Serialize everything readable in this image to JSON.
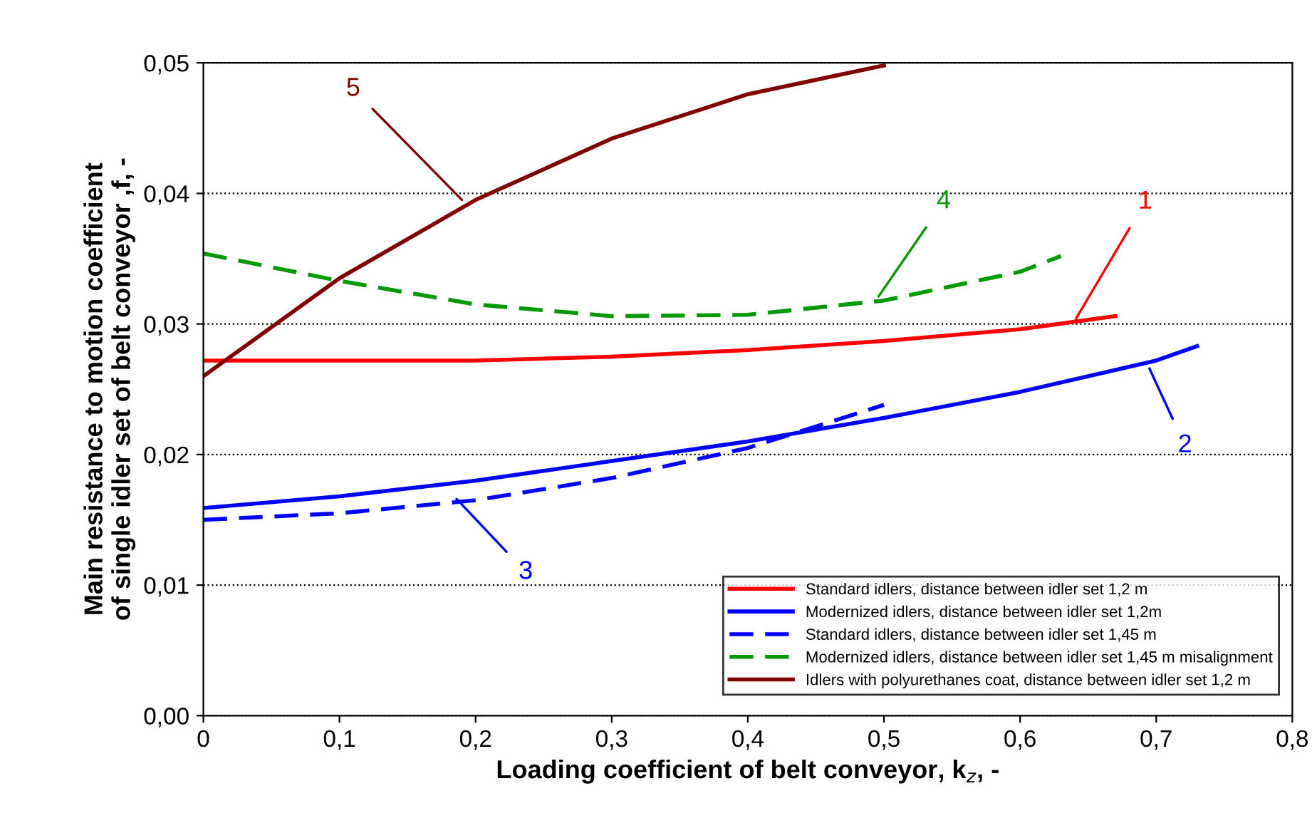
{
  "chart_data": {
    "type": "line",
    "xlabel": "Loading coefficient of belt conveyor, k$_{z}$, -",
    "ylabel": "Main resistance to motion coefficient\nof single idler set of belt conveyor ,f, -",
    "xlim": [
      0,
      0.8
    ],
    "ylim": [
      0,
      0.05
    ],
    "xticks": [
      0,
      {
        "value": 0.1,
        "label": "0,1"
      },
      {
        "value": 0.2,
        "label": "0,2"
      },
      {
        "value": 0.3,
        "label": "0,3"
      },
      {
        "value": 0.4,
        "label": "0,4"
      },
      {
        "value": 0.5,
        "label": "0,5"
      },
      {
        "value": 0.6,
        "label": "0,6"
      },
      {
        "value": 0.7,
        "label": "0,7"
      },
      {
        "value": 0.8,
        "label": "0,8"
      }
    ],
    "yticks": [
      {
        "value": 0,
        "label": "0,00"
      },
      {
        "value": 0.01,
        "label": "0,01"
      },
      {
        "value": 0.02,
        "label": "0,02"
      },
      {
        "value": 0.03,
        "label": "0,03"
      },
      {
        "value": 0.04,
        "label": "0,04"
      },
      {
        "value": 0.05,
        "label": "0,05"
      }
    ],
    "grid": "y",
    "legend": "bottom right",
    "marker": "none",
    "series": [
      {
        "name": "Standard idlers, distance between idler set 1,2 m",
        "color": "#ff0000",
        "line_style": "solid",
        "x": [
          0,
          0.1,
          0.2,
          0.3,
          0.4,
          0.5,
          0.6,
          0.67
        ],
        "values": [
          0.0272,
          0.0272,
          0.0272,
          0.0275,
          0.028,
          0.0287,
          0.0296,
          0.0306
        ]
      },
      {
        "name": "Modernized idlers, distance between idler set 1,2m",
        "color": "#0000ff",
        "line_style": "solid",
        "x": [
          0,
          0.1,
          0.2,
          0.3,
          0.4,
          0.5,
          0.6,
          0.7,
          0.73
        ],
        "values": [
          0.0159,
          0.0168,
          0.018,
          0.0195,
          0.021,
          0.0228,
          0.0248,
          0.0272,
          0.0283
        ]
      },
      {
        "name": "Standard idlers, distance between idler set 1,45 m",
        "color": "#0000ff",
        "line_style": "dashed",
        "x": [
          0,
          0.1,
          0.2,
          0.3,
          0.4,
          0.5
        ],
        "values": [
          0.015,
          0.0155,
          0.0165,
          0.0182,
          0.0205,
          0.0238
        ]
      },
      {
        "name": "Modernized idlers, distance between idler set 1,45 m misalignment",
        "color": "#009900",
        "line_style": "dashed",
        "x": [
          0,
          0.1,
          0.2,
          0.3,
          0.4,
          0.5,
          0.6,
          0.63
        ],
        "values": [
          0.0354,
          0.0333,
          0.0315,
          0.0306,
          0.0307,
          0.0318,
          0.034,
          0.0352
        ]
      },
      {
        "name": "Idlers with polyurethanes coat, distance between idler set 1,2 m",
        "color": "#800000",
        "line_style": "solid",
        "x": [
          0,
          0.1,
          0.2,
          0.3,
          0.4,
          0.5
        ],
        "values": [
          0.026,
          0.0335,
          0.0395,
          0.0442,
          0.0476,
          0.0498
        ]
      }
    ],
    "annotations": [
      {
        "text": "1",
        "x": 0.641,
        "y": 0.0304
      },
      {
        "text": "2",
        "x": 0.695,
        "y": 0.0266
      },
      {
        "text": "3",
        "x": 0.186,
        "y": 0.0166
      },
      {
        "text": "4",
        "x": 0.496,
        "y": 0.0321
      },
      {
        "text": "5",
        "x": 0.19,
        "y": 0.0395
      }
    ]
  }
}
